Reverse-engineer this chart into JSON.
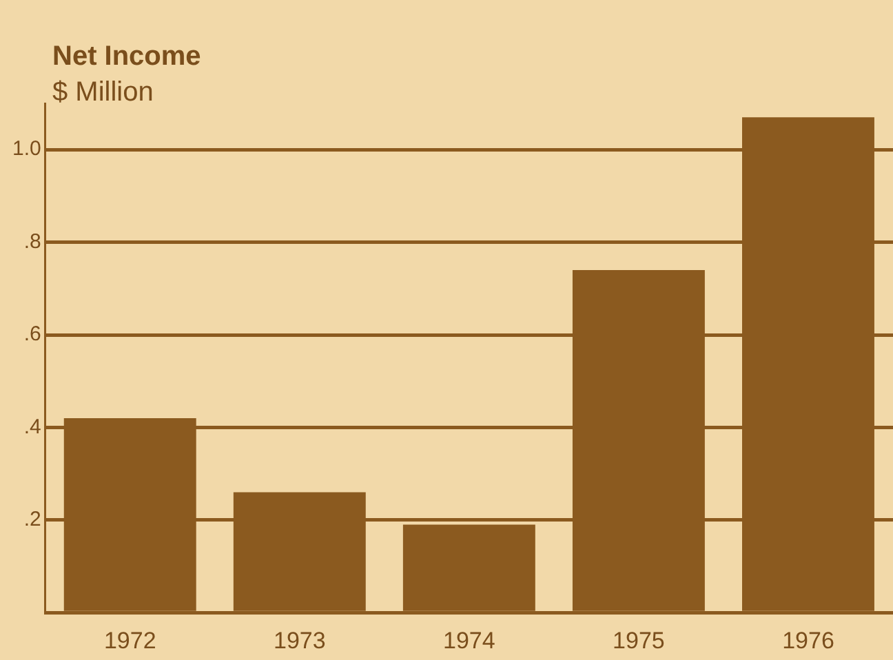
{
  "chart_data": {
    "type": "bar",
    "title": "Net Income",
    "subtitle": "$ Million",
    "categories": [
      "1972",
      "1973",
      "1974",
      "1975",
      "1976"
    ],
    "values": [
      0.42,
      0.26,
      0.19,
      0.74,
      1.07
    ],
    "color": "#8b5a1f",
    "ylim": [
      0,
      1.1
    ],
    "yticks": [
      {
        "value": 0,
        "label": null
      },
      {
        "value": 0.2,
        "label": ".2"
      },
      {
        "value": 0.4,
        "label": ".4"
      },
      {
        "value": 0.6,
        "label": ".6"
      },
      {
        "value": 0.8,
        "label": ".8"
      },
      {
        "value": 1,
        "label": "1.0"
      }
    ],
    "grid": "y",
    "legend": false
  }
}
